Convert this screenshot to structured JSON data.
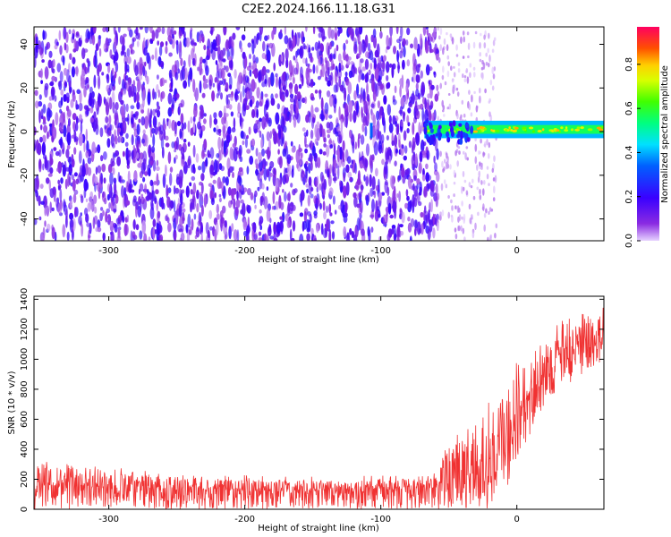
{
  "figure_title": "C2E2.2024.166.11.18.G31",
  "colors": {
    "snr_line": "#f03232",
    "low_amplitude": "#6a00ff",
    "axis": "#000000"
  },
  "chart_data": [
    {
      "type": "heatmap",
      "title": "C2E2.2024.166.11.18.G31",
      "xlabel": "Height of straight line (km)",
      "ylabel": "Frequency (Hz)",
      "xlim": [
        -355,
        64
      ],
      "ylim": [
        -50,
        48
      ],
      "xticks": [
        -300,
        -200,
        -100,
        0
      ],
      "yticks": [
        -40,
        -20,
        0,
        20,
        40
      ],
      "colorbar": {
        "label": "Normalized spectral amplitude",
        "range": [
          0.0,
          0.97
        ],
        "ticks": [
          0.0,
          0.2,
          0.4,
          0.6,
          0.8
        ],
        "colormap": "rainbow (purple → blue → cyan → green → yellow → red → magenta)"
      },
      "regions": [
        {
          "x_range": [
            -355,
            -58
          ],
          "freq_range": [
            -50,
            48
          ],
          "amplitude": "0.1–0.25 broadband noise"
        },
        {
          "x_range": [
            -58,
            -15
          ],
          "freq_range": [
            -50,
            48
          ],
          "amplitude": "sparse noise, ≤0.1"
        },
        {
          "x_range": [
            -68,
            64
          ],
          "freq_range": [
            -3,
            5
          ],
          "amplitude": "signal band 0.3–0.8, centered near 1 Hz"
        }
      ],
      "features": [
        {
          "x": -107,
          "freq_range": [
            -3,
            4
          ],
          "amplitude": 0.35
        }
      ],
      "grid": false
    },
    {
      "type": "line",
      "xlabel": "Height of straight line (km)",
      "ylabel": "SNR (10 * v/v)",
      "xlim": [
        -355,
        64
      ],
      "ylim": [
        0,
        1420
      ],
      "xticks": [
        -300,
        -200,
        -100,
        0
      ],
      "yticks": [
        0,
        200,
        400,
        600,
        800,
        1000,
        1200,
        1400
      ],
      "grid": false,
      "series": [
        {
          "x": [
            -355,
            -330,
            -300,
            -250,
            -200,
            -150,
            -100,
            -60,
            -50,
            -40,
            -30,
            -20,
            -10,
            0,
            10,
            20,
            30,
            40,
            50,
            64
          ],
          "values": [
            150,
            150,
            145,
            135,
            120,
            118,
            125,
            140,
            200,
            180,
            250,
            300,
            450,
            550,
            750,
            900,
            950,
            1000,
            1050,
            1150
          ],
          "upper_envelope": [
            350,
            300,
            280,
            250,
            230,
            220,
            230,
            240,
            500,
            600,
            700,
            750,
            900,
            1000,
            1100,
            1200,
            1250,
            1300,
            1330,
            1400
          ],
          "lower_envelope": [
            0,
            0,
            0,
            0,
            0,
            0,
            0,
            0,
            0,
            0,
            0,
            0,
            100,
            250,
            500,
            700,
            800,
            850,
            900,
            1000
          ]
        }
      ]
    }
  ]
}
